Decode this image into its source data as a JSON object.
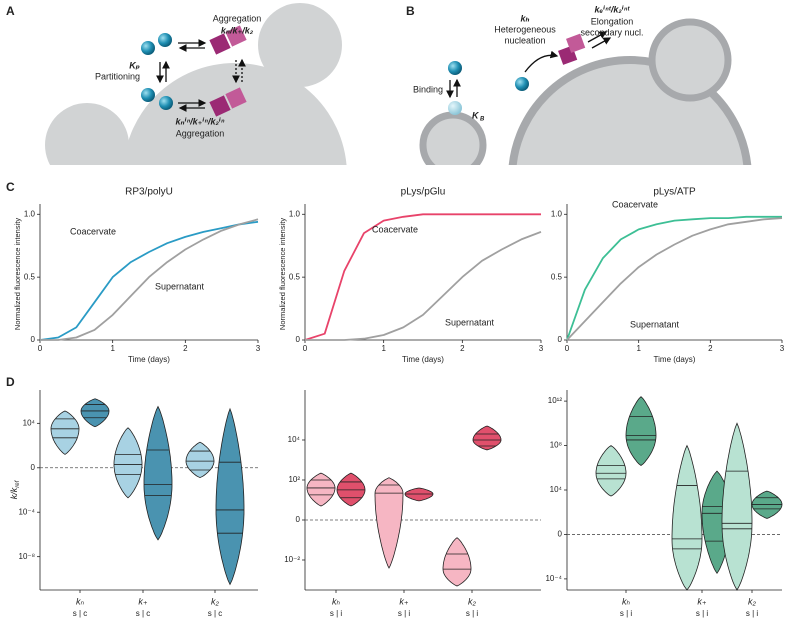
{
  "panel_labels": [
    "A",
    "B",
    "C",
    "D"
  ],
  "diagram_a": {
    "aggregation_top": "Aggregation",
    "rates_top": "kₙ/k₊/k₂",
    "partition_symbol": "Kₚ",
    "partition_label": "Partitioning",
    "rates_inside": "kₙⁱⁿ/k₊ⁱⁿ/k₂ⁱⁿ",
    "aggregation_inside": "Aggregation"
  },
  "diagram_b": {
    "nucleation_symbol": "kₕ",
    "nucleation_label": [
      "Heterogeneous",
      "nucleation"
    ],
    "elongation_symbol": "kₑⁱⁿᵗ/k₂ⁱⁿᵗ",
    "elongation_label": [
      "Elongation",
      "secondary nucl."
    ],
    "binding_label": "Binding",
    "binding_symbol": "K",
    "binding_subscript": "B"
  },
  "chart_data": [
    {
      "type": "line",
      "title": "RP3/polyU",
      "x_label": "Time (days)",
      "y_label": "Normalized fluorescence intensity",
      "x": [
        0,
        0.25,
        0.5,
        0.75,
        1,
        1.25,
        1.5,
        1.75,
        2,
        2.25,
        2.5,
        2.75,
        3
      ],
      "series": [
        {
          "name": "Coacervate",
          "color": "#2a9bc5",
          "values": [
            0,
            0.02,
            0.1,
            0.3,
            0.5,
            0.62,
            0.7,
            0.77,
            0.82,
            0.86,
            0.89,
            0.92,
            0.94
          ]
        },
        {
          "name": "Supernatant",
          "color": "#a0a0a0",
          "values": [
            0,
            0,
            0.02,
            0.08,
            0.2,
            0.35,
            0.5,
            0.62,
            0.72,
            0.8,
            0.87,
            0.92,
            0.96
          ]
        }
      ],
      "xlim": [
        0,
        3
      ],
      "ylim": [
        0,
        1.05
      ],
      "xticks": [
        0,
        1,
        2,
        3
      ],
      "yticks": [
        0,
        0.5,
        {
          "value": 1,
          "label": "1.0"
        }
      ]
    },
    {
      "type": "line",
      "title": "pLys/pGlu",
      "x_label": "Time (days)",
      "y_label": "Normalized fluorescence intensity",
      "x": [
        0,
        0.25,
        0.5,
        0.75,
        1,
        1.25,
        1.5,
        1.75,
        2,
        2.25,
        2.5,
        2.75,
        3
      ],
      "series": [
        {
          "name": "Coacervate",
          "color": "#e8436a",
          "values": [
            0,
            0.05,
            0.55,
            0.85,
            0.95,
            0.98,
            1,
            1,
            1,
            1,
            1,
            1,
            1
          ]
        },
        {
          "name": "Supernatant",
          "color": "#a0a0a0",
          "values": [
            0,
            0,
            0,
            0.01,
            0.04,
            0.1,
            0.2,
            0.35,
            0.5,
            0.63,
            0.72,
            0.8,
            0.86
          ]
        }
      ],
      "xlim": [
        0,
        3
      ],
      "ylim": [
        0,
        1.05
      ],
      "xticks": [
        0,
        1,
        2,
        3
      ],
      "yticks": [
        0,
        0.5,
        {
          "value": 1,
          "label": "1.0"
        }
      ]
    },
    {
      "type": "line",
      "title": "pLys/ATP",
      "x_label": "Time (days)",
      "x": [
        0,
        0.25,
        0.5,
        0.75,
        1,
        1.25,
        1.5,
        1.75,
        2,
        2.25,
        2.5,
        2.75,
        3
      ],
      "series": [
        {
          "name": "Coacervate",
          "color": "#3dbf95",
          "values": [
            0,
            0.4,
            0.65,
            0.8,
            0.88,
            0.92,
            0.95,
            0.96,
            0.97,
            0.97,
            0.98,
            0.98,
            0.98
          ]
        },
        {
          "name": "Supernatant",
          "color": "#a0a0a0",
          "values": [
            0,
            0.15,
            0.3,
            0.45,
            0.58,
            0.68,
            0.76,
            0.83,
            0.88,
            0.92,
            0.94,
            0.96,
            0.97
          ]
        }
      ],
      "xlim": [
        0,
        3
      ],
      "ylim": [
        0,
        1.05
      ],
      "xticks": [
        0,
        1,
        2,
        3
      ],
      "yticks": [
        0,
        0.5,
        {
          "value": 1,
          "label": "1.0"
        }
      ]
    },
    {
      "type": "violin",
      "y_label": {
        "text": "k/k",
        "subscript": "ref"
      },
      "log_scale": true,
      "reference_line": 1,
      "ylim": [
        1e-11,
        10000000.0
      ],
      "yticks": [
        {
          "value": 10000,
          "label": "10⁴"
        },
        {
          "value": 1,
          "label": "0"
        },
        {
          "value": 0.0001,
          "label": "10⁻⁴"
        },
        {
          "value": 1e-08,
          "label": "10⁻⁸"
        }
      ],
      "groups": [
        {
          "label": "kₙ",
          "sublabel": "s | c",
          "violins": [
            {
              "color": "#a8d2e3",
              "max": 130000.0,
              "min": 16,
              "quantiles": [
                25000.0,
                3200.0,
                500
              ]
            },
            {
              "color": "#4a93b0",
              "max": 1600000.0,
              "min": 5000,
              "quantiles": [
                500000.0,
                130000.0,
                32000.0
              ]
            }
          ]
        },
        {
          "label": "k₊",
          "sublabel": "s | c",
          "violins": [
            {
              "color": "#a8d2e3",
              "max": 4000,
              "min": 0.002,
              "quantiles": [
                16,
                2,
                0.25
              ]
            },
            {
              "color": "#4a93b0",
              "max": 320000.0,
              "min": 3.2e-07,
              "quantiles": [
                40,
                0.032,
                0.0032
              ]
            }
          ]
        },
        {
          "label": "k₂",
          "sublabel": "s | c",
          "violins": [
            {
              "color": "#a8d2e3",
              "max": 200,
              "min": 0.13,
              "quantiles": [
                32,
                4,
                0.63
              ]
            },
            {
              "color": "#4a93b0",
              "max": 200000.0,
              "min": 3.2e-11,
              "quantiles": [
                3.2,
                0.00016,
                1.3e-06
              ]
            }
          ]
        }
      ]
    },
    {
      "type": "violin",
      "log_scale": true,
      "reference_line": 1,
      "ylim": [
        0.000316,
        3160000.0
      ],
      "yticks": [
        {
          "value": 10000,
          "label": "10⁴"
        },
        {
          "value": 100,
          "label": "10²"
        },
        {
          "value": 1,
          "label": "0"
        },
        {
          "value": 0.01,
          "label": "10⁻²"
        }
      ],
      "groups": [
        {
          "label": "kₕ",
          "sublabel": "s | i",
          "violins": [
            {
              "color": "#f6b6c3",
              "max": 220,
              "min": 5,
              "quantiles": [
                100,
                40,
                18
              ]
            },
            {
              "color": "#e0506c",
              "max": 220,
              "min": 5,
              "quantiles": [
                80,
                32,
                13
              ]
            }
          ]
        },
        {
          "label": "k₊",
          "sublabel": "s | i",
          "violins": [
            {
              "color": "#f6b6c3",
              "max": 130,
              "min": 0.004,
              "quantiles": [
                56,
                22
              ]
            },
            {
              "color": "#e0506c",
              "max": 40,
              "min": 9,
              "quantiles": [
                20
              ]
            }
          ]
        },
        {
          "label": "k₂",
          "sublabel": "s | i",
          "violins": [
            {
              "color": "#f6b6c3",
              "max": 0.13,
              "min": 0.0005,
              "quantiles": [
                0.02,
                0.0035
              ]
            },
            {
              "color": "#e0506c",
              "max": 50000.0,
              "min": 3200,
              "quantiles": [
                20000.0,
                10000.0,
                5000
              ]
            }
          ]
        }
      ]
    },
    {
      "type": "violin",
      "log_scale": true,
      "reference_line": 1,
      "ylim": [
        1e-05,
        10000000000000.0
      ],
      "yticks": [
        {
          "value": 1000000000000.0,
          "label": "10¹²"
        },
        {
          "value": 100000000.0,
          "label": "10⁸"
        },
        {
          "value": 10000,
          "label": "10⁴"
        },
        {
          "value": 1,
          "label": "0"
        },
        {
          "value": 0.0001,
          "label": "10⁻⁴"
        }
      ],
      "groups": [
        {
          "label": "kₕ",
          "sublabel": "s | i",
          "violins": [
            {
              "color": "#b8e2d2",
              "max": 100000000.0,
              "min": 2800,
              "quantiles": [
                1600000.0,
                320000.0,
                100000.0
              ]
            },
            {
              "color": "#5aa98a",
              "max": 2500000000000.0,
              "min": 1600000.0,
              "quantiles": [
                40000000000.0,
                800000000.0,
                320000000.0
              ]
            }
          ]
        },
        {
          "label": "k₊",
          "sublabel": "s | i",
          "violins": [
            {
              "color": "#b8e2d2",
              "max": 100000000.0,
              "min": 1e-05,
              "quantiles": [
                25000.0,
                0.4,
                0.05
              ]
            },
            {
              "color": "#5aa98a",
              "max": 500000.0,
              "min": 0.00032,
              "quantiles": [
                320,
                80,
                0.25
              ]
            }
          ]
        },
        {
          "label": "k₂",
          "sublabel": "s | i",
          "violins": [
            {
              "color": "#b8e2d2",
              "max": 10000000000.0,
              "min": 1e-05,
              "quantiles": [
                500000.0,
                10,
                3.2
              ]
            },
            {
              "color": "#5aa98a",
              "max": 8000,
              "min": 28,
              "quantiles": [
                2000,
                500,
                200
              ]
            }
          ]
        }
      ]
    }
  ]
}
